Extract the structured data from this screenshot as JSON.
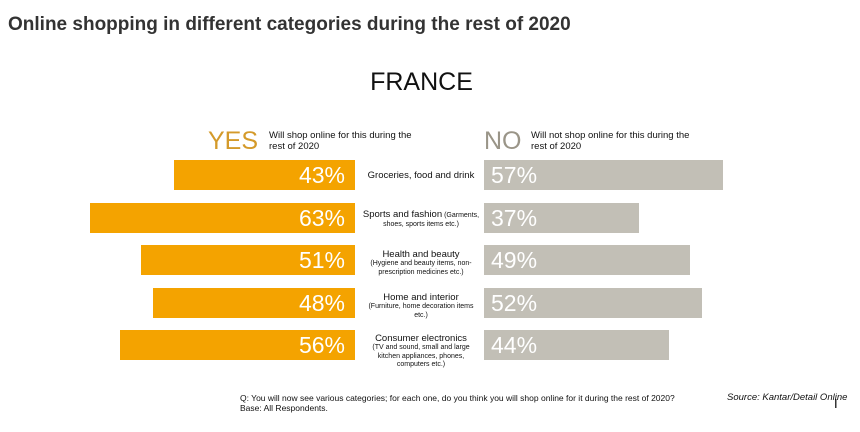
{
  "page": {
    "title": "Online shopping in different categories during the rest of 2020"
  },
  "colors": {
    "yes": "#f4a300",
    "no": "#c2bfb6",
    "yes_text": "#d49a2a",
    "no_text": "#9a9588"
  },
  "chart_data": {
    "type": "bar",
    "title": "FRANCE",
    "orientation": "horizontal-diverging",
    "xlim": [
      0,
      100
    ],
    "yes_header": {
      "label": "YES",
      "description": "Will shop online for this during the rest of 2020"
    },
    "no_header": {
      "label": "NO",
      "description": "Will not shop online for this during the rest of 2020"
    },
    "categories": [
      {
        "name": "Groceries, food and drink",
        "sub": ""
      },
      {
        "name": "Sports and fashion",
        "sub_inline": "(Garments,",
        "sub": "shoes, sports items etc.)"
      },
      {
        "name": "Health and beauty",
        "sub": "(Hygiene and beauty items, non-prescription medicines etc.)"
      },
      {
        "name": "Home and interior",
        "sub": "(Furniture, home decoration items etc.)"
      },
      {
        "name": "Consumer electronics",
        "sub": "(TV and sound, small and large kitchen appliances, phones, computers etc.)"
      }
    ],
    "series": [
      {
        "name": "YES",
        "values": [
          43,
          63,
          51,
          48,
          56
        ]
      },
      {
        "name": "NO",
        "values": [
          57,
          37,
          49,
          52,
          44
        ]
      }
    ],
    "value_suffix": "%"
  },
  "footnote": {
    "question": "Q: You will now see various categories; for each one, do you think you will shop online for it during the rest of 2020?",
    "base": "Base: All Respondents."
  },
  "source": "Source: Kantar/Detail Online",
  "cursor_glyph": "I"
}
